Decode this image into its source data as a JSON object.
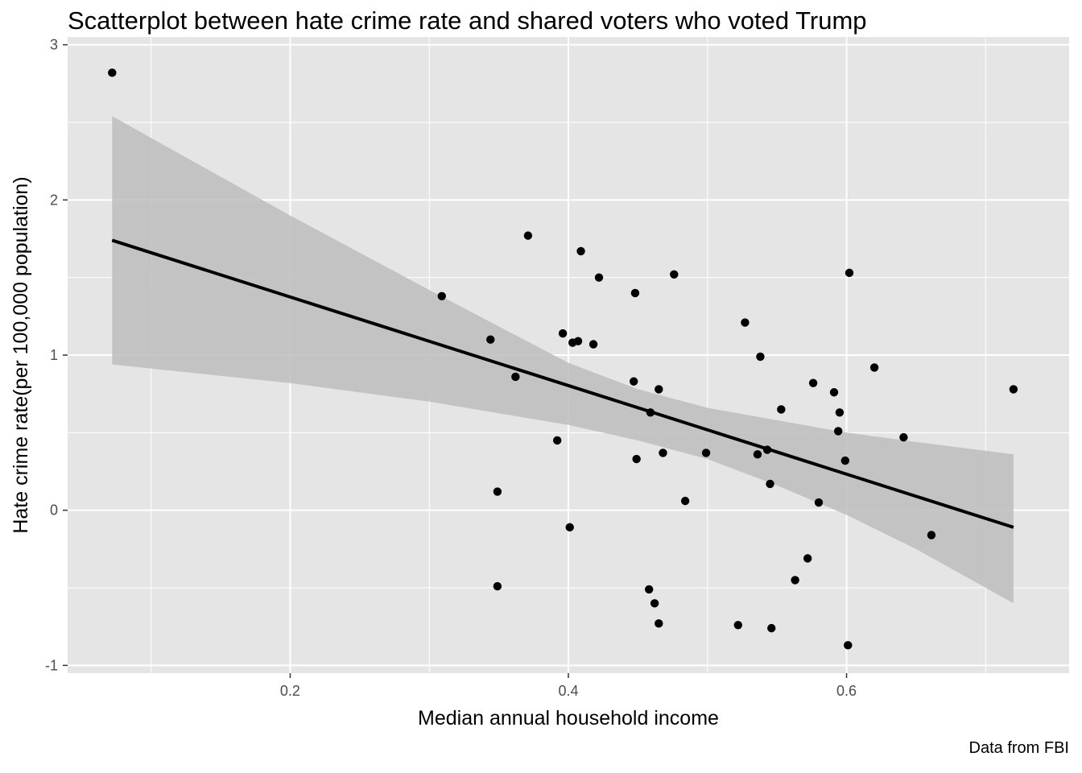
{
  "chart_data": {
    "type": "scatter",
    "title": "Scatterplot between hate crime rate and shared voters who voted Trump",
    "xlabel": "Median annual household income",
    "ylabel": "Hate crime rate(per 100,000 population)",
    "caption": "Data from FBI",
    "xlim": [
      0.04,
      0.76
    ],
    "ylim": [
      -1.05,
      3.05
    ],
    "x_ticks": [
      0.2,
      0.4,
      0.6
    ],
    "x_tick_labels": [
      "0.2",
      "0.4",
      "0.6"
    ],
    "y_ticks": [
      -1,
      0,
      1,
      2,
      3
    ],
    "y_tick_labels": [
      "-1",
      "0",
      "1",
      "2",
      "3"
    ],
    "grid": true,
    "trend_line": {
      "type": "linear",
      "x": [
        0.072,
        0.72
      ],
      "y": [
        1.74,
        -0.11
      ],
      "confidence_band": {
        "x": [
          0.072,
          0.2,
          0.3,
          0.4,
          0.45,
          0.5,
          0.55,
          0.6,
          0.65,
          0.72
        ],
        "lower": [
          0.94,
          0.82,
          0.7,
          0.55,
          0.45,
          0.33,
          0.16,
          -0.03,
          -0.25,
          -0.6
        ],
        "upper": [
          2.54,
          1.9,
          1.42,
          0.95,
          0.78,
          0.66,
          0.58,
          0.5,
          0.44,
          0.36
        ]
      }
    },
    "colors": {
      "panel": "#e5e5e5",
      "grid": "#ffffff",
      "points": "#000000",
      "band": "#bdbdbd",
      "line": "#000000"
    },
    "points": [
      {
        "x": 0.072,
        "y": 2.82
      },
      {
        "x": 0.309,
        "y": 1.38
      },
      {
        "x": 0.344,
        "y": 1.1
      },
      {
        "x": 0.349,
        "y": 0.12
      },
      {
        "x": 0.349,
        "y": -0.49
      },
      {
        "x": 0.362,
        "y": 0.86
      },
      {
        "x": 0.371,
        "y": 1.77
      },
      {
        "x": 0.392,
        "y": 0.45
      },
      {
        "x": 0.396,
        "y": 1.14
      },
      {
        "x": 0.401,
        "y": -0.11
      },
      {
        "x": 0.403,
        "y": 1.08
      },
      {
        "x": 0.407,
        "y": 1.09
      },
      {
        "x": 0.409,
        "y": 1.67
      },
      {
        "x": 0.418,
        "y": 1.07
      },
      {
        "x": 0.422,
        "y": 1.5
      },
      {
        "x": 0.447,
        "y": 0.83
      },
      {
        "x": 0.448,
        "y": 1.4
      },
      {
        "x": 0.449,
        "y": 0.33
      },
      {
        "x": 0.458,
        "y": -0.51
      },
      {
        "x": 0.459,
        "y": 0.63
      },
      {
        "x": 0.462,
        "y": -0.6
      },
      {
        "x": 0.465,
        "y": 0.78
      },
      {
        "x": 0.465,
        "y": -0.73
      },
      {
        "x": 0.468,
        "y": 0.37
      },
      {
        "x": 0.476,
        "y": 1.52
      },
      {
        "x": 0.484,
        "y": 0.06
      },
      {
        "x": 0.499,
        "y": 0.37
      },
      {
        "x": 0.522,
        "y": -0.74
      },
      {
        "x": 0.527,
        "y": 1.21
      },
      {
        "x": 0.536,
        "y": 0.36
      },
      {
        "x": 0.538,
        "y": 0.99
      },
      {
        "x": 0.543,
        "y": 0.39
      },
      {
        "x": 0.545,
        "y": 0.17
      },
      {
        "x": 0.546,
        "y": -0.76
      },
      {
        "x": 0.553,
        "y": 0.65
      },
      {
        "x": 0.563,
        "y": -0.45
      },
      {
        "x": 0.572,
        "y": -0.31
      },
      {
        "x": 0.576,
        "y": 0.82
      },
      {
        "x": 0.58,
        "y": 0.05
      },
      {
        "x": 0.591,
        "y": 0.76
      },
      {
        "x": 0.594,
        "y": 0.51
      },
      {
        "x": 0.595,
        "y": 0.63
      },
      {
        "x": 0.599,
        "y": 0.32
      },
      {
        "x": 0.601,
        "y": -0.87
      },
      {
        "x": 0.602,
        "y": 1.53
      },
      {
        "x": 0.62,
        "y": 0.92
      },
      {
        "x": 0.641,
        "y": 0.47
      },
      {
        "x": 0.661,
        "y": -0.16
      },
      {
        "x": 0.72,
        "y": 0.78
      }
    ]
  }
}
